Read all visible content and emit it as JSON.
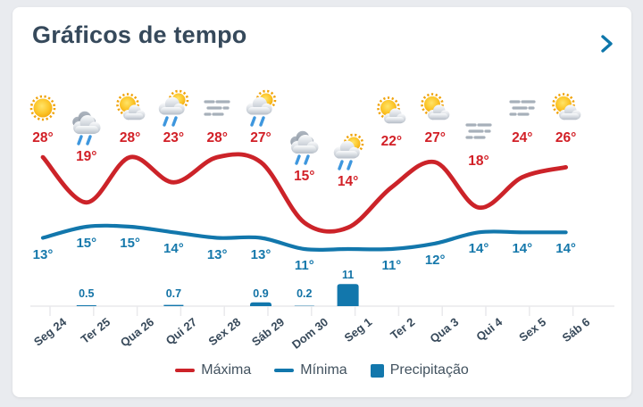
{
  "card": {
    "title": "Gráficos de tempo"
  },
  "legend": {
    "items": [
      {
        "label": "Máxima",
        "swatch": "line",
        "color": "#cc2329"
      },
      {
        "label": "Mínima",
        "swatch": "line",
        "color": "#1277ac"
      },
      {
        "label": "Precipitação",
        "swatch": "square",
        "color": "#1277ac"
      }
    ]
  },
  "colors": {
    "max_line": "#cc2329",
    "max_text": "#d22027",
    "min_line": "#1277ac",
    "min_text": "#1578ab",
    "bar": "#1277ac",
    "title": "#36495b",
    "chevron": "#0d76aa",
    "axis": "#e9e9ec",
    "day_text": "#37495a"
  },
  "chart_data": {
    "type": "line+bar",
    "title": "Gráficos de tempo",
    "categories": [
      "Seg 24",
      "Ter 25",
      "Qua 26",
      "Qui 27",
      "Sex 28",
      "Sáb 29",
      "Dom 30",
      "Seg 1",
      "Ter 2",
      "Qua 3",
      "Qui 4",
      "Sex 5",
      "Sáb 6"
    ],
    "icons": [
      "sun",
      "rain",
      "sun-cloud",
      "rain-sun",
      "fog",
      "rain-sun",
      "rain",
      "rain-sun",
      "sun-cloud",
      "sun-cloud",
      "fog",
      "fog",
      "sun-cloud"
    ],
    "unit_temperature": "°",
    "legend_position": "bottom",
    "grid": "x-ticks-only",
    "series": [
      {
        "name": "Máxima",
        "type": "line",
        "color": "#cc2329",
        "values": [
          28,
          19,
          28,
          23,
          28,
          27,
          15,
          14,
          22,
          27,
          18,
          24,
          26
        ]
      },
      {
        "name": "Mínima",
        "type": "line",
        "color": "#1277ac",
        "values": [
          13,
          15,
          15,
          14,
          13,
          13,
          11,
          11,
          11,
          12,
          14,
          14,
          14
        ],
        "labels_hidden_at": [
          7
        ]
      },
      {
        "name": "Precipitação",
        "type": "bar",
        "color": "#1277ac",
        "values": [
          null,
          0.5,
          null,
          0.7,
          null,
          0.9,
          0.2,
          11,
          null,
          null,
          null,
          null,
          null
        ]
      }
    ]
  }
}
